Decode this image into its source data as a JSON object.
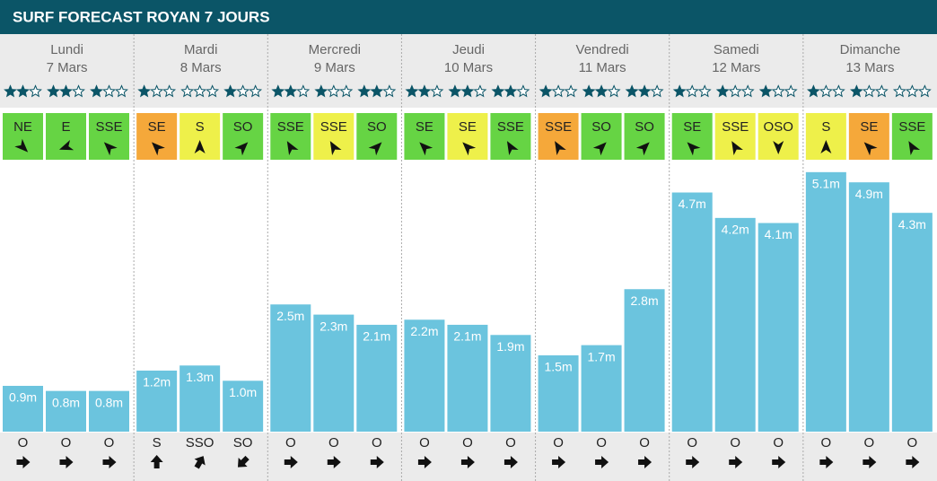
{
  "title": "SURF FORECAST ROYAN 7 JOURS",
  "bar_color": "#6bc4de",
  "days": [
    {
      "name": "Lundi",
      "date": "7 Mars",
      "slots": [
        {
          "rating": 2,
          "wind": "NE",
          "wind_color": "#66d444",
          "wind_deg": 135,
          "height": 0.9,
          "height_label": "0.9m",
          "swell": "O",
          "swell_deg": 90
        },
        {
          "rating": 2,
          "wind": "E",
          "wind_color": "#66d444",
          "wind_deg": 250,
          "height": 0.8,
          "height_label": "0.8m",
          "swell": "O",
          "swell_deg": 90
        },
        {
          "rating": 1,
          "wind": "SSE",
          "wind_color": "#66d444",
          "wind_deg": 315,
          "height": 0.8,
          "height_label": "0.8m",
          "swell": "O",
          "swell_deg": 90
        }
      ]
    },
    {
      "name": "Mardi",
      "date": "8 Mars",
      "slots": [
        {
          "rating": 1,
          "wind": "SE",
          "wind_color": "#f5a83a",
          "wind_deg": 315,
          "height": 1.2,
          "height_label": "1.2m",
          "swell": "S",
          "swell_deg": 0
        },
        {
          "rating": 0,
          "wind": "S",
          "wind_color": "#eef04a",
          "wind_deg": 0,
          "height": 1.3,
          "height_label": "1.3m",
          "swell": "SSO",
          "swell_deg": 30
        },
        {
          "rating": 1,
          "wind": "SO",
          "wind_color": "#66d444",
          "wind_deg": 45,
          "height": 1.0,
          "height_label": "1.0m",
          "swell": "SO",
          "swell_deg": 225
        }
      ]
    },
    {
      "name": "Mercredi",
      "date": "9 Mars",
      "slots": [
        {
          "rating": 2,
          "wind": "SSE",
          "wind_color": "#66d444",
          "wind_deg": 330,
          "height": 2.5,
          "height_label": "2.5m",
          "swell": "O",
          "swell_deg": 90
        },
        {
          "rating": 1,
          "wind": "SSE",
          "wind_color": "#eef04a",
          "wind_deg": 330,
          "height": 2.3,
          "height_label": "2.3m",
          "swell": "O",
          "swell_deg": 90
        },
        {
          "rating": 2,
          "wind": "SO",
          "wind_color": "#66d444",
          "wind_deg": 45,
          "height": 2.1,
          "height_label": "2.1m",
          "swell": "O",
          "swell_deg": 90
        }
      ]
    },
    {
      "name": "Jeudi",
      "date": "10 Mars",
      "slots": [
        {
          "rating": 2,
          "wind": "SE",
          "wind_color": "#66d444",
          "wind_deg": 315,
          "height": 2.2,
          "height_label": "2.2m",
          "swell": "O",
          "swell_deg": 90
        },
        {
          "rating": 2,
          "wind": "SE",
          "wind_color": "#eef04a",
          "wind_deg": 315,
          "height": 2.1,
          "height_label": "2.1m",
          "swell": "O",
          "swell_deg": 90
        },
        {
          "rating": 2,
          "wind": "SSE",
          "wind_color": "#66d444",
          "wind_deg": 330,
          "height": 1.9,
          "height_label": "1.9m",
          "swell": "O",
          "swell_deg": 90
        }
      ]
    },
    {
      "name": "Vendredi",
      "date": "11 Mars",
      "slots": [
        {
          "rating": 1,
          "wind": "SSE",
          "wind_color": "#f5a83a",
          "wind_deg": 330,
          "height": 1.5,
          "height_label": "1.5m",
          "swell": "O",
          "swell_deg": 90
        },
        {
          "rating": 2,
          "wind": "SO",
          "wind_color": "#66d444",
          "wind_deg": 45,
          "height": 1.7,
          "height_label": "1.7m",
          "swell": "O",
          "swell_deg": 90
        },
        {
          "rating": 2,
          "wind": "SO",
          "wind_color": "#66d444",
          "wind_deg": 45,
          "height": 2.8,
          "height_label": "2.8m",
          "swell": "O",
          "swell_deg": 90
        }
      ]
    },
    {
      "name": "Samedi",
      "date": "12 Mars",
      "slots": [
        {
          "rating": 1,
          "wind": "SE",
          "wind_color": "#66d444",
          "wind_deg": 315,
          "height": 4.7,
          "height_label": "4.7m",
          "swell": "O",
          "swell_deg": 90
        },
        {
          "rating": 1,
          "wind": "SSE",
          "wind_color": "#eef04a",
          "wind_deg": 330,
          "height": 4.2,
          "height_label": "4.2m",
          "swell": "O",
          "swell_deg": 90
        },
        {
          "rating": 1,
          "wind": "OSO",
          "wind_color": "#eef04a",
          "wind_deg": 180,
          "height": 4.1,
          "height_label": "4.1m",
          "swell": "O",
          "swell_deg": 90
        }
      ]
    },
    {
      "name": "Dimanche",
      "date": "13 Mars",
      "slots": [
        {
          "rating": 1,
          "wind": "S",
          "wind_color": "#eef04a",
          "wind_deg": 0,
          "height": 5.1,
          "height_label": "5.1m",
          "swell": "O",
          "swell_deg": 90
        },
        {
          "rating": 1,
          "wind": "SE",
          "wind_color": "#f5a83a",
          "wind_deg": 315,
          "height": 4.9,
          "height_label": "4.9m",
          "swell": "O",
          "swell_deg": 90
        },
        {
          "rating": 0,
          "wind": "SSE",
          "wind_color": "#66d444",
          "wind_deg": 330,
          "height": 4.3,
          "height_label": "4.3m",
          "swell": "O",
          "swell_deg": 90
        }
      ]
    }
  ]
}
